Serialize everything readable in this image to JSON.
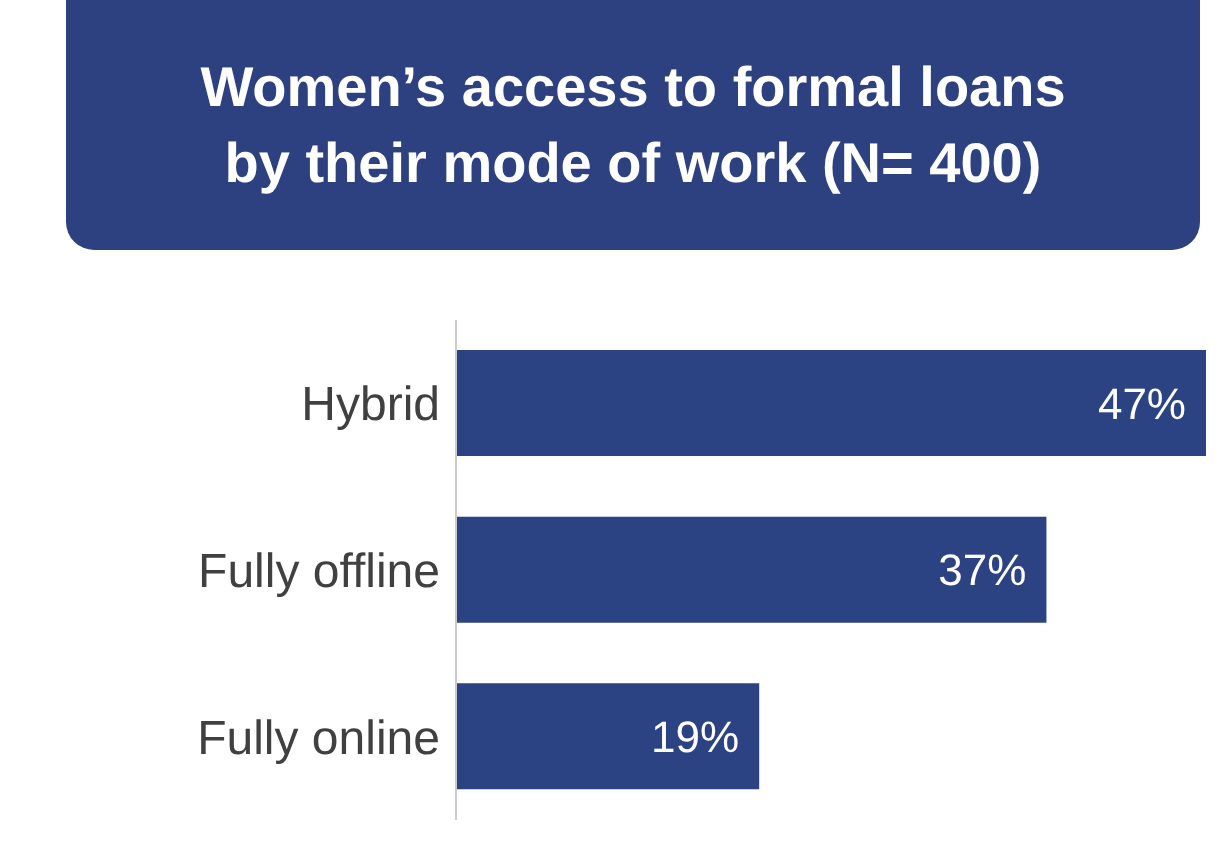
{
  "chart_data": {
    "type": "bar",
    "orientation": "horizontal",
    "title": "Women’s access to formal loans by their mode of work (N= 400)",
    "categories": [
      "Hybrid",
      "Fully offline",
      "Fully online"
    ],
    "values": [
      47,
      37,
      19
    ],
    "value_labels": [
      "47%",
      "37%",
      "19%"
    ],
    "color": "#2b4283"
  }
}
